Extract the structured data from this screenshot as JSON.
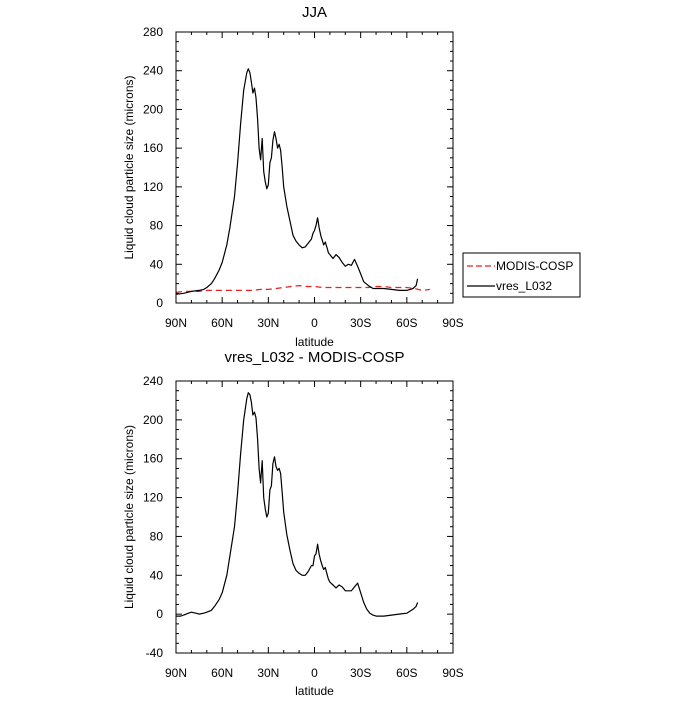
{
  "chart_data": [
    {
      "type": "line",
      "title": "JJA",
      "xlabel": "latitude",
      "ylabel": "Liquid cloud particle size (microns)",
      "xlim": [
        90,
        -90
      ],
      "ylim": [
        0,
        280
      ],
      "x_ticks": [
        90,
        60,
        30,
        0,
        -30,
        -60,
        -90
      ],
      "x_tick_labels": [
        "90N",
        "60N",
        "30N",
        "0",
        "30S",
        "60S",
        "90S"
      ],
      "y_ticks": [
        0,
        40,
        80,
        120,
        160,
        200,
        240,
        280
      ],
      "y_tick_labels": [
        "0",
        "40",
        "80",
        "120",
        "160",
        "200",
        "240",
        "280"
      ],
      "legend": {
        "placement": "right"
      },
      "series": [
        {
          "name": "MODIS-COSP",
          "color": "#e8211f",
          "dash": true,
          "x": [
            90,
            85,
            80,
            75,
            70,
            65,
            60,
            55,
            50,
            45,
            40,
            35,
            30,
            25,
            20,
            15,
            10,
            5,
            0,
            -5,
            -10,
            -15,
            -20,
            -25,
            -30,
            -35,
            -40,
            -45,
            -50,
            -55,
            -60,
            -65,
            -70,
            -75
          ],
          "y": [
            11,
            12,
            12,
            12,
            13,
            13,
            13,
            13,
            13,
            13,
            13,
            14,
            14,
            15,
            16,
            17,
            18,
            17,
            17,
            16,
            16,
            16,
            16,
            16,
            16,
            16,
            17,
            17,
            16,
            16,
            16,
            15,
            13,
            14
          ]
        },
        {
          "name": "vres_L032",
          "color": "#000000",
          "dash": false,
          "x": [
            90,
            85,
            80,
            75,
            72,
            70,
            67,
            65,
            62,
            60,
            57,
            55,
            52,
            50,
            48,
            46,
            44,
            43,
            42,
            41,
            40,
            39,
            38,
            37,
            36,
            35,
            34,
            33,
            32,
            31,
            30,
            29,
            28,
            27,
            26,
            25,
            24,
            23,
            22,
            21,
            20,
            18,
            16,
            14,
            12,
            10,
            8,
            6,
            4,
            2,
            1,
            0,
            -1,
            -2,
            -3,
            -4,
            -5,
            -6,
            -7,
            -8,
            -9,
            -10,
            -12,
            -14,
            -16,
            -18,
            -20,
            -22,
            -24,
            -26,
            -28,
            -30,
            -32,
            -35,
            -38,
            -40,
            -45,
            -50,
            -55,
            -60,
            -62,
            -64,
            -66,
            -67
          ],
          "y": [
            9,
            10,
            12,
            13,
            14,
            16,
            20,
            25,
            34,
            42,
            60,
            78,
            110,
            145,
            185,
            220,
            238,
            242,
            238,
            228,
            217,
            222,
            212,
            190,
            160,
            148,
            170,
            136,
            125,
            118,
            122,
            145,
            150,
            168,
            177,
            170,
            160,
            164,
            158,
            140,
            120,
            100,
            85,
            70,
            64,
            60,
            57,
            58,
            62,
            66,
            72,
            75,
            80,
            88,
            78,
            70,
            65,
            60,
            63,
            58,
            52,
            50,
            46,
            50,
            47,
            42,
            38,
            40,
            39,
            45,
            38,
            30,
            22,
            18,
            15,
            15,
            15,
            14,
            13,
            13,
            14,
            15,
            18,
            25
          ]
        }
      ]
    },
    {
      "type": "line",
      "title": "vres_L032 - MODIS-COSP",
      "xlabel": "latitude",
      "ylabel": "Liquid cloud particle size (microns)",
      "xlim": [
        90,
        -90
      ],
      "ylim": [
        -40,
        240
      ],
      "x_ticks": [
        90,
        60,
        30,
        0,
        -30,
        -60,
        -90
      ],
      "x_tick_labels": [
        "90N",
        "60N",
        "30N",
        "0",
        "30S",
        "60S",
        "90S"
      ],
      "y_ticks": [
        -40,
        0,
        40,
        80,
        120,
        160,
        200,
        240
      ],
      "y_tick_labels": [
        "-40",
        "0",
        "40",
        "80",
        "120",
        "160",
        "200",
        "240"
      ],
      "series": [
        {
          "color": "#000000",
          "dash": false,
          "x": [
            90,
            87,
            85,
            82,
            80,
            77,
            75,
            72,
            70,
            67,
            65,
            62,
            60,
            57,
            55,
            52,
            50,
            48,
            46,
            44,
            43,
            42,
            41,
            40,
            39,
            38,
            37,
            36,
            35,
            34,
            33,
            32,
            31,
            30,
            29,
            28,
            27,
            26,
            25,
            24,
            23,
            22,
            21,
            20,
            18,
            16,
            14,
            12,
            10,
            8,
            6,
            4,
            2,
            1,
            0,
            -1,
            -2,
            -3,
            -4,
            -5,
            -6,
            -7,
            -8,
            -9,
            -10,
            -12,
            -14,
            -16,
            -18,
            -20,
            -22,
            -24,
            -26,
            -28,
            -30,
            -32,
            -34,
            -36,
            -38,
            -40,
            -45,
            -50,
            -55,
            -60,
            -62,
            -64,
            -66,
            -67
          ],
          "y": [
            -2,
            -2,
            -1,
            1,
            2,
            1,
            0,
            1,
            2,
            4,
            8,
            15,
            22,
            40,
            60,
            90,
            125,
            165,
            200,
            222,
            228,
            226,
            218,
            205,
            208,
            202,
            180,
            150,
            135,
            158,
            120,
            108,
            100,
            104,
            128,
            132,
            155,
            162,
            152,
            148,
            150,
            145,
            125,
            105,
            82,
            66,
            52,
            45,
            42,
            40,
            40,
            44,
            50,
            50,
            60,
            62,
            72,
            62,
            55,
            50,
            46,
            48,
            42,
            36,
            33,
            30,
            27,
            30,
            28,
            24,
            24,
            24,
            28,
            32,
            22,
            12,
            5,
            1,
            -1,
            -2,
            -2,
            -1,
            0,
            1,
            3,
            5,
            8,
            12
          ]
        }
      ]
    }
  ]
}
